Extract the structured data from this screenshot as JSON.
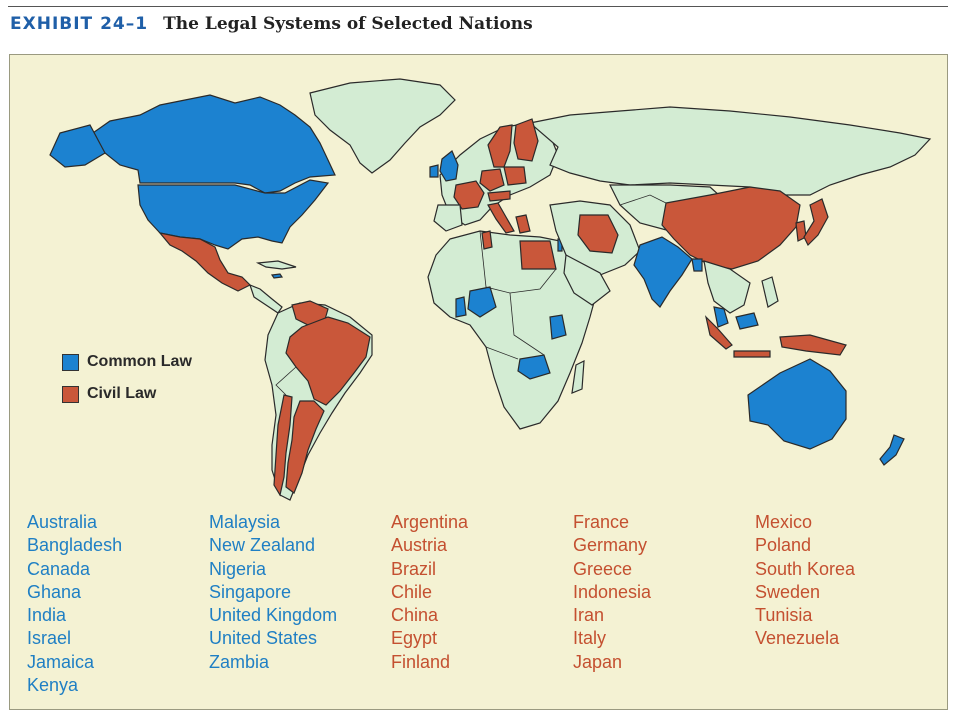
{
  "header": {
    "exhibit": "EXHIBIT 24–1",
    "title": "The Legal Systems of Selected Nations"
  },
  "colors": {
    "common_law": "#1c82d0",
    "civil_law": "#c9573a",
    "other_land": "#d3ecd3",
    "water": "#f4f2d3"
  },
  "legend": {
    "common_law": "Common Law",
    "civil_law": "Civil Law"
  },
  "common_law_countries": [
    "Australia",
    "Bangladesh",
    "Canada",
    "Ghana",
    "India",
    "Israel",
    "Jamaica",
    "Kenya",
    "Malaysia",
    "New Zealand",
    "Nigeria",
    "Singapore",
    "United Kingdom",
    "United States",
    "Zambia"
  ],
  "civil_law_countries": [
    "Argentina",
    "Austria",
    "Brazil",
    "Chile",
    "China",
    "Egypt",
    "Finland",
    "France",
    "Germany",
    "Greece",
    "Indonesia",
    "Iran",
    "Italy",
    "Japan",
    "Mexico",
    "Poland",
    "South Korea",
    "Sweden",
    "Tunisia",
    "Venezuela"
  ]
}
